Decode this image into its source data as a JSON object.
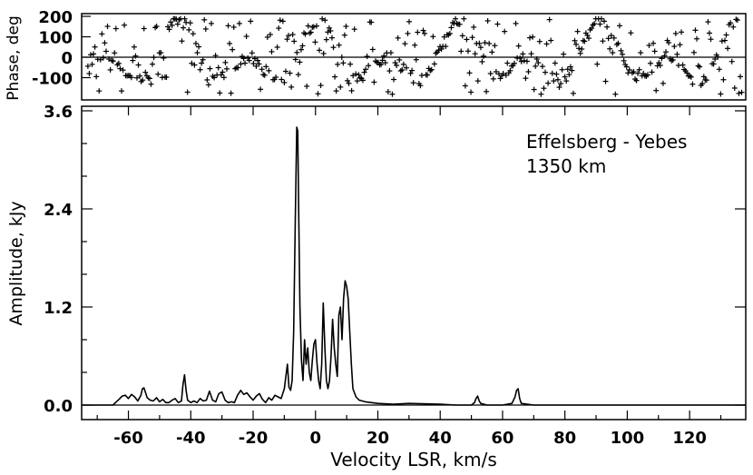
{
  "chart_data": [
    {
      "type": "scatter",
      "panel": "phase",
      "ylabel": "Phase, deg",
      "ylim": [
        -200,
        200
      ],
      "yticks": [
        "200",
        "100",
        "0",
        "-100"
      ],
      "marker": "plus",
      "zero_line": true,
      "xlim": [
        -75,
        138
      ],
      "points": []
    },
    {
      "type": "line",
      "panel": "amplitude",
      "ylabel": "Amplitude, kJy",
      "xlabel": "Velocity LSR, km/s",
      "xlim": [
        -75,
        138
      ],
      "ylim": [
        -0.05,
        3.6
      ],
      "xticks": [
        "-60",
        "-40",
        "-20",
        "0",
        "20",
        "40",
        "60",
        "80",
        "100",
        "120"
      ],
      "yticks": [
        "3.6",
        "2.4",
        "1.2",
        "0.0"
      ],
      "annotation": [
        "Effelsberg - Yebes",
        "1350 km"
      ],
      "series": [
        {
          "x": [
            -75,
            -65,
            -63,
            -62,
            -61,
            -60,
            -59,
            -58,
            -57,
            -56,
            -55.5,
            -55,
            -54.5,
            -54,
            -53,
            -52,
            -51,
            -50,
            -49,
            -48,
            -47,
            -46,
            -45,
            -44,
            -43,
            -42.5,
            -42,
            -41.5,
            -41,
            -40,
            -39,
            -38,
            -37,
            -36,
            -35,
            -34,
            -33,
            -32,
            -31,
            -30,
            -29,
            -28,
            -27,
            -26,
            -25,
            -24,
            -23,
            -22,
            -21,
            -20,
            -19,
            -18,
            -17,
            -16,
            -15,
            -14,
            -13,
            -12,
            -11,
            -10,
            -9,
            -8.5,
            -8,
            -7.5,
            -7,
            -6.5,
            -6,
            -5.7,
            -5.4,
            -5,
            -4.5,
            -4,
            -3.5,
            -3,
            -2.5,
            -2,
            -1.5,
            -1,
            -0.5,
            0,
            0.5,
            1,
            1.5,
            2,
            2.5,
            3,
            3.5,
            4,
            4.5,
            5,
            5.5,
            6,
            6.5,
            7,
            7.5,
            8,
            8.5,
            9,
            9.5,
            10,
            10.5,
            11,
            11.5,
            12,
            13,
            14,
            16,
            18,
            20,
            25,
            30,
            40,
            45,
            50,
            51,
            51.5,
            52,
            52.5,
            53,
            55,
            60,
            63,
            64,
            64.5,
            65,
            65.5,
            66,
            70,
            80,
            90,
            100,
            110,
            120,
            130,
            138
          ],
          "y": [
            0.0,
            0.0,
            0.07,
            0.11,
            0.12,
            0.08,
            0.13,
            0.1,
            0.05,
            0.12,
            0.2,
            0.21,
            0.15,
            0.09,
            0.06,
            0.05,
            0.09,
            0.04,
            0.07,
            0.03,
            0.03,
            0.06,
            0.08,
            0.03,
            0.05,
            0.25,
            0.37,
            0.18,
            0.06,
            0.03,
            0.05,
            0.03,
            0.08,
            0.05,
            0.06,
            0.17,
            0.06,
            0.04,
            0.14,
            0.16,
            0.06,
            0.03,
            0.04,
            0.03,
            0.12,
            0.18,
            0.13,
            0.15,
            0.1,
            0.06,
            0.11,
            0.14,
            0.07,
            0.03,
            0.09,
            0.06,
            0.12,
            0.1,
            0.08,
            0.2,
            0.5,
            0.22,
            0.18,
            0.3,
            0.9,
            2.2,
            3.4,
            3.35,
            2.4,
            1.2,
            0.55,
            0.3,
            0.8,
            0.5,
            0.7,
            0.4,
            0.3,
            0.55,
            0.75,
            0.8,
            0.5,
            0.3,
            0.2,
            0.5,
            1.25,
            0.7,
            0.3,
            0.2,
            0.3,
            0.6,
            1.05,
            0.7,
            0.5,
            0.35,
            1.1,
            1.2,
            0.8,
            1.3,
            1.52,
            1.45,
            1.3,
            0.9,
            0.5,
            0.2,
            0.1,
            0.06,
            0.04,
            0.03,
            0.02,
            0.01,
            0.02,
            0.01,
            0.0,
            0.0,
            0.03,
            0.08,
            0.11,
            0.05,
            0.02,
            0.0,
            0.0,
            0.02,
            0.1,
            0.18,
            0.2,
            0.08,
            0.02,
            0.0,
            0.0,
            0.0,
            0.0,
            0.0,
            0.0,
            0.0,
            0.0
          ]
        }
      ]
    }
  ]
}
